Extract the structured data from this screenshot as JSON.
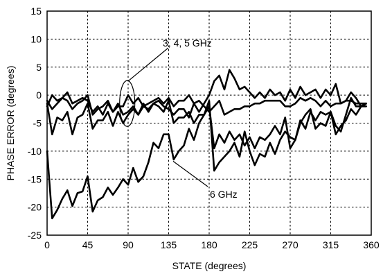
{
  "chart_data": {
    "type": "line",
    "title": "",
    "xlabel": "STATE (degrees)",
    "ylabel": "PHASE ERROR  (degrees)",
    "xlim": [
      0,
      360
    ],
    "ylim": [
      -25,
      15
    ],
    "xticks": [
      0,
      45,
      90,
      135,
      180,
      225,
      270,
      315,
      360
    ],
    "yticks": [
      -25,
      -20,
      -15,
      -10,
      -5,
      0,
      5,
      10,
      15
    ],
    "grid": true,
    "annotations": [
      {
        "text": "3, 4, 5 GHz"
      },
      {
        "text": "6 GHz"
      }
    ],
    "series": [
      {
        "x": [
          0,
          5.6,
          11.2,
          16.9,
          22.5,
          28.1,
          33.8,
          39.4,
          45,
          50.6,
          56.2,
          61.9,
          67.5,
          73.1,
          78.8,
          84.4,
          90,
          95.6,
          101.2,
          106.9,
          112.5,
          118.1,
          123.8,
          129.4,
          135,
          140.6,
          146.2,
          151.9,
          157.5,
          163.1,
          168.8,
          174.4,
          180,
          185.6,
          191.2,
          196.9,
          202.5,
          208.1,
          213.8,
          219.4,
          225,
          230.6,
          236.2,
          241.9,
          247.5,
          253.1,
          258.8,
          264.4,
          270,
          275.6,
          281.2,
          286.9,
          292.5,
          298.1,
          303.8,
          309.4,
          315,
          320.6,
          326.2,
          331.9,
          337.5,
          343.1,
          348.8,
          354.4
        ],
        "values": [
          -10,
          -22,
          -20.5,
          -18.5,
          -17,
          -19.8,
          -17.5,
          -17.2,
          -14.5,
          -20.8,
          -18.8,
          -18.2,
          -16.5,
          -17.8,
          -16.5,
          -15,
          -16,
          -13,
          -15.5,
          -14.5,
          -12,
          -8.5,
          -9.5,
          -7,
          -7,
          -11.5,
          -10,
          -9,
          -6,
          -8,
          -5,
          -3.5,
          -1,
          -13.5,
          -12,
          -11,
          -10,
          -8.5,
          -11,
          -6.5,
          -10,
          -12.5,
          -10.5,
          -11,
          -8.5,
          -10.5,
          -8,
          -6.5,
          -7.5,
          -8,
          -4.5,
          -6,
          -3,
          -4.5,
          -3,
          -3.5,
          -3,
          -5.5,
          -6.5,
          -3.5,
          -0.5,
          -2,
          -2,
          -1.5
        ]
      },
      {
        "x": [
          0,
          5.6,
          11.2,
          16.9,
          22.5,
          28.1,
          33.8,
          39.4,
          45,
          50.6,
          56.2,
          61.9,
          67.5,
          73.1,
          78.8,
          84.4,
          90,
          95.6,
          101.2,
          106.9,
          112.5,
          118.1,
          123.8,
          129.4,
          135,
          140.6,
          146.2,
          151.9,
          157.5,
          163.1,
          168.8,
          174.4,
          180,
          185.6,
          191.2,
          196.9,
          202.5,
          208.1,
          213.8,
          219.4,
          225,
          230.6,
          236.2,
          241.9,
          247.5,
          253.1,
          258.8,
          264.4,
          270,
          275.6,
          281.2,
          286.9,
          292.5,
          298.1,
          303.8,
          309.4,
          315,
          320.6,
          326.2,
          331.9,
          337.5,
          343.1,
          348.8,
          354.4
        ],
        "values": [
          -1.5,
          -7,
          -4,
          -4.5,
          -3,
          -7,
          -4,
          -3.5,
          -1.5,
          -6,
          -4.5,
          -4.5,
          -3,
          -5.5,
          -3,
          -5,
          -3.5,
          -2.5,
          -3.5,
          -2,
          -2.5,
          -1.5,
          -2,
          -3,
          -1,
          -5,
          -4,
          -4,
          -3,
          -5,
          -3.5,
          -3.5,
          -2,
          -9.5,
          -7,
          -8.5,
          -6.5,
          -8,
          -7,
          -9,
          -7.5,
          -9.5,
          -7.5,
          -8,
          -7,
          -5.5,
          -7,
          -4,
          -9.5,
          -8,
          -5,
          -3.5,
          -2.5,
          -6,
          -5,
          -5.5,
          -3,
          -7,
          -5.5,
          -4.5,
          -2.5,
          -3.5,
          -2,
          -2
        ]
      },
      {
        "x": [
          0,
          5.6,
          11.2,
          16.9,
          22.5,
          28.1,
          33.8,
          39.4,
          45,
          50.6,
          56.2,
          61.9,
          67.5,
          73.1,
          78.8,
          84.4,
          90,
          95.6,
          101.2,
          106.9,
          112.5,
          118.1,
          123.8,
          129.4,
          135,
          140.6,
          146.2,
          151.9,
          157.5,
          163.1,
          168.8,
          174.4,
          180,
          185.6,
          191.2,
          196.9,
          202.5,
          208.1,
          213.8,
          219.4,
          225,
          230.6,
          236.2,
          241.9,
          247.5,
          253.1,
          258.8,
          264.4,
          270,
          275.6,
          281.2,
          286.9,
          292.5,
          298.1,
          303.8,
          309.4,
          315,
          320.6,
          326.2,
          331.9,
          337.5,
          343.1,
          348.8,
          354.4
        ],
        "values": [
          -2,
          0,
          -1,
          -0.5,
          0.5,
          -1.5,
          -1,
          -0.5,
          -1,
          -3,
          -2,
          -3.5,
          -1.5,
          -3,
          -1.5,
          -3.5,
          -3,
          -2,
          -3.5,
          -1.5,
          -3,
          -1.5,
          -1,
          -2,
          -2.5,
          -3.5,
          -2.5,
          -2.5,
          -4,
          -1.5,
          -3,
          -1.5,
          0,
          2.5,
          3.5,
          1,
          4.5,
          3,
          1,
          1.5,
          0.5,
          -0.5,
          0.5,
          -0.5,
          1,
          0,
          0.5,
          -1,
          1,
          -0.5,
          1.5,
          0,
          0.5,
          1,
          -0.5,
          1,
          0,
          2,
          -1.5,
          -1,
          0.5,
          -0.5,
          -2,
          -1.5
        ]
      },
      {
        "x": [
          0,
          5.6,
          11.2,
          16.9,
          22.5,
          28.1,
          33.8,
          39.4,
          45,
          50.6,
          56.2,
          61.9,
          67.5,
          73.1,
          78.8,
          84.4,
          90,
          95.6,
          101.2,
          106.9,
          112.5,
          118.1,
          123.8,
          129.4,
          135,
          140.6,
          146.2,
          151.9,
          157.5,
          163.1,
          168.8,
          174.4,
          180,
          185.6,
          191.2,
          196.9,
          202.5,
          208.1,
          213.8,
          219.4,
          225,
          230.6,
          236.2,
          241.9,
          247.5,
          253.1,
          258.8,
          264.4,
          270,
          275.6,
          281.2,
          286.9,
          292.5,
          298.1,
          303.8,
          309.4,
          315,
          320.6,
          326.2,
          331.9,
          337.5,
          343.1,
          348.8,
          354.4
        ],
        "values": [
          -1,
          -2.5,
          -1.5,
          -0.5,
          -1,
          -2.5,
          -1.5,
          -1,
          0,
          -3.5,
          -2.5,
          -2,
          -1,
          -3,
          -2,
          -2,
          0,
          -1.5,
          -0.5,
          -2,
          -1.5,
          -1,
          -0.5,
          -1.5,
          -0.5,
          -2,
          -1,
          -1,
          0,
          -1.5,
          -1,
          -2,
          -3,
          -2,
          -1,
          -3.5,
          -3,
          -2.5,
          -2.5,
          -2,
          -2,
          -1.5,
          -1.5,
          -1,
          -1,
          -1,
          -1,
          -2,
          -2,
          -1.5,
          -0.5,
          -1,
          -0.5,
          -1,
          -2,
          -1,
          -2,
          -1.5,
          -1.5,
          -1,
          -1,
          -1.5,
          -1.5,
          -1.5
        ]
      }
    ]
  }
}
